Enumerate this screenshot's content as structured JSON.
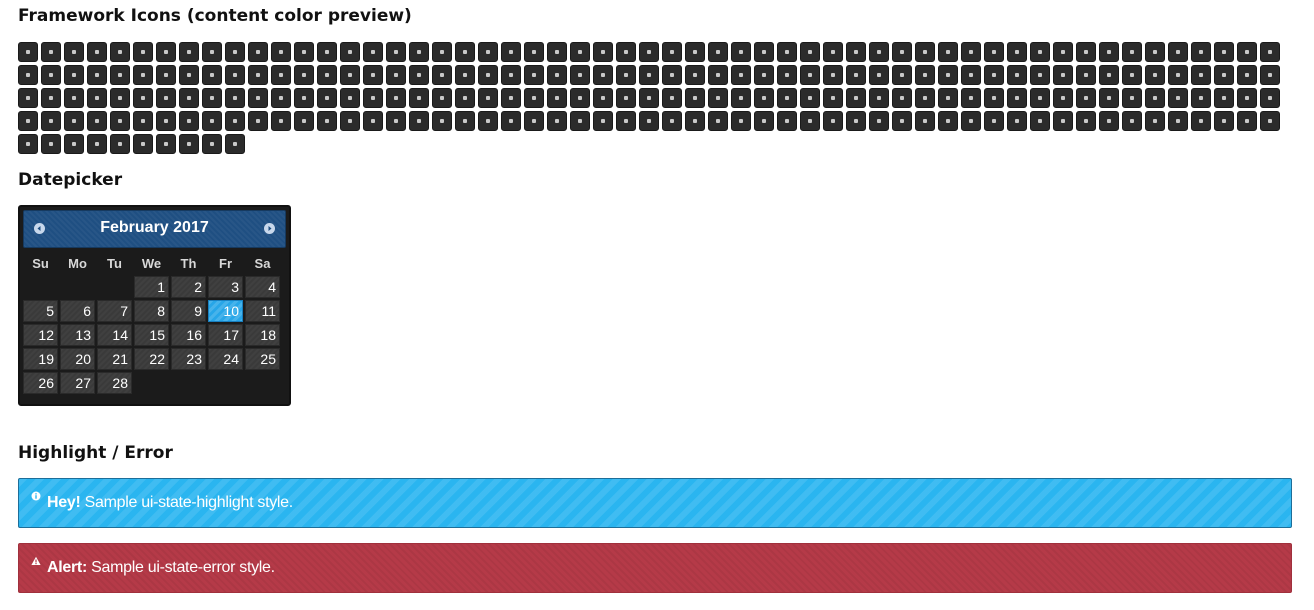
{
  "sections": {
    "icons_title": "Framework Icons (content color preview)",
    "datepicker_title": "Datepicker",
    "highlight_title": "Highlight / Error"
  },
  "icons": {
    "count": 230,
    "button_color": "#2b2b2b",
    "glyph_color": "#c9c9c9"
  },
  "datepicker": {
    "month_label": "February 2017",
    "weekdays": [
      "Su",
      "Mo",
      "Tu",
      "We",
      "Th",
      "Fr",
      "Sa"
    ],
    "weeks": [
      [
        "",
        "",
        "",
        "1",
        "2",
        "3",
        "4"
      ],
      [
        "5",
        "6",
        "7",
        "8",
        "9",
        "10",
        "11"
      ],
      [
        "12",
        "13",
        "14",
        "15",
        "16",
        "17",
        "18"
      ],
      [
        "19",
        "20",
        "21",
        "22",
        "23",
        "24",
        "25"
      ],
      [
        "26",
        "27",
        "28",
        "",
        "",
        "",
        ""
      ]
    ],
    "selected_day": "10",
    "prev_icon": "circle-triangle-w-icon",
    "next_icon": "circle-triangle-e-icon",
    "header_color": "#1f4f82",
    "selected_color": "#27a6e8"
  },
  "highlight": {
    "strong": "Hey!",
    "text": " Sample ui-state-highlight style.",
    "icon": "info-icon",
    "color": "#2ab5f0"
  },
  "error": {
    "strong": "Alert:",
    "text": " Sample ui-state-error style.",
    "icon": "alert-icon",
    "color": "#b53a48"
  }
}
